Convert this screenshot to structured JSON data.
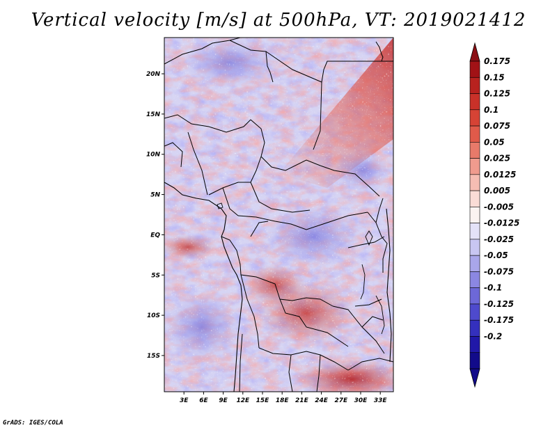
{
  "title": "Vertical velocity [m/s] at 500hPa, VT: 2019021412",
  "footer": "GrADS: IGES/COLA",
  "map": {
    "lon_labels": [
      "3E",
      "6E",
      "9E",
      "12E",
      "15E",
      "18E",
      "21E",
      "24E",
      "27E",
      "30E",
      "33E"
    ],
    "lat_labels": [
      "20N",
      "15N",
      "10N",
      "5N",
      "EQ",
      "5S",
      "10S",
      "15S"
    ],
    "lon_values": [
      3,
      6,
      9,
      12,
      15,
      18,
      21,
      24,
      27,
      30,
      33
    ],
    "lat_values": [
      20,
      15,
      10,
      5,
      0,
      -5,
      -10,
      -15
    ],
    "lon_range": [
      0,
      35
    ],
    "lat_range": [
      -19.5,
      24.5
    ],
    "variable": "Vertical velocity",
    "units": "m/s",
    "level": "500hPa",
    "valid_time": "2019021412"
  },
  "colorbar": {
    "labels": [
      "0.175",
      "0.15",
      "0.125",
      "0.1",
      "0.075",
      "0.05",
      "0.025",
      "0.0125",
      "0.005",
      "-0.005",
      "-0.0125",
      "-0.025",
      "-0.05",
      "-0.075",
      "-0.1",
      "-0.125",
      "-0.175",
      "-0.2"
    ],
    "colors": [
      "#a11216",
      "#b8221f",
      "#c93129",
      "#d64335",
      "#e05a4a",
      "#e87a6a",
      "#f09b8e",
      "#f6bdb3",
      "#fadcd6",
      "#fbf3f1",
      "#e4e2f8",
      "#c8c6f2",
      "#a9a6ea",
      "#8b87e2",
      "#6d68d8",
      "#4e4acd",
      "#3430bd",
      "#2018a8",
      "#120b8a"
    ],
    "max_color": "#8b0f14",
    "min_color": "#120b8a"
  }
}
